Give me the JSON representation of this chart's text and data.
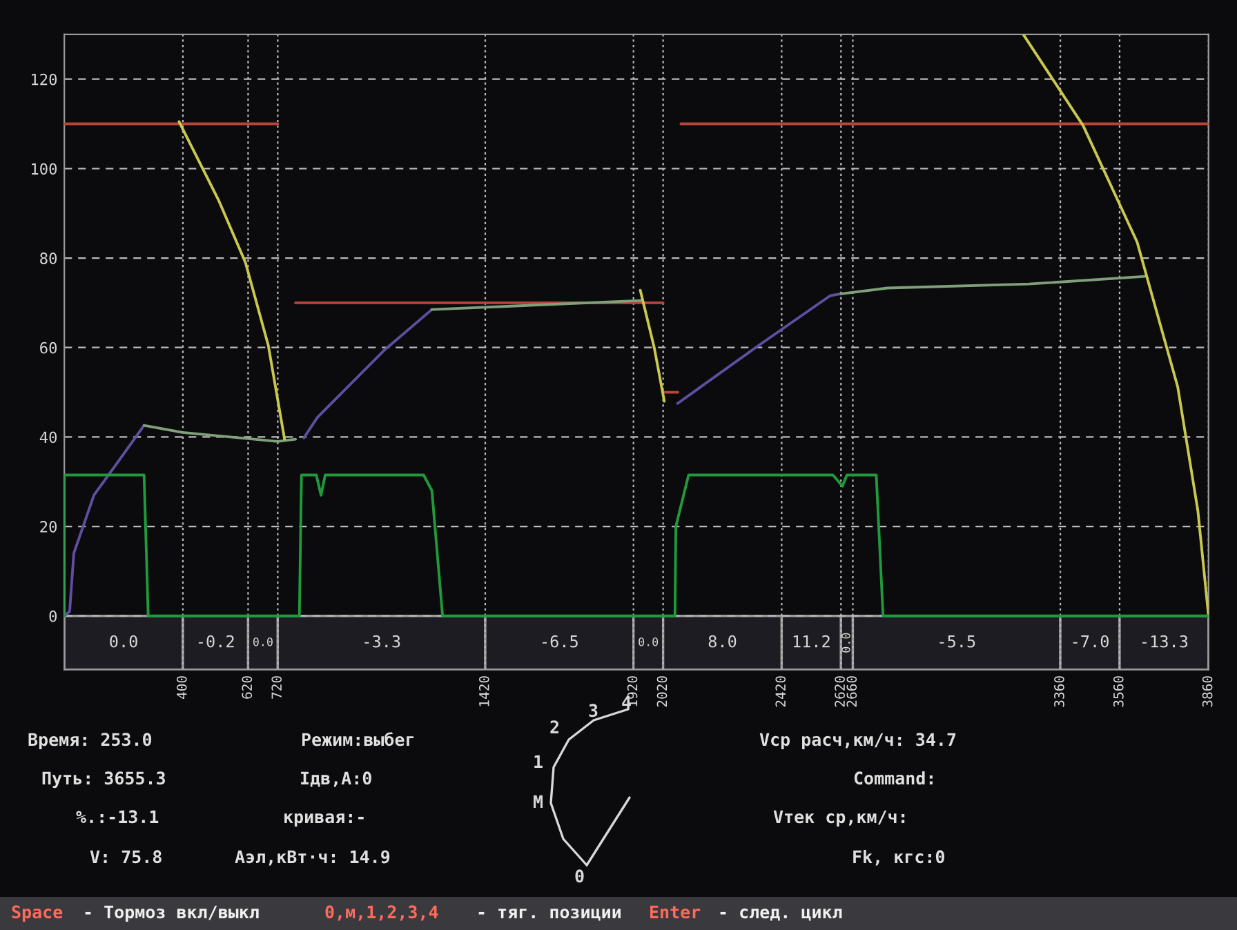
{
  "chart_data": {
    "type": "line",
    "series": [
      {
        "color": "#b8453a",
        "x": [
          0,
          720
        ],
        "values": [
          110,
          110
        ]
      },
      {
        "color": "#b8453a",
        "x": [
          780,
          2020
        ],
        "values": [
          70,
          70
        ]
      },
      {
        "color": "#b8453a",
        "x": [
          2020,
          2070
        ],
        "values": [
          50,
          50
        ]
      },
      {
        "color": "#b8453a",
        "x": [
          2080,
          3860
        ],
        "values": [
          110,
          110
        ]
      },
      {
        "color": "#5e4fa0",
        "x": [
          0,
          18,
          32,
          100,
          187,
          269
        ],
        "values": [
          0,
          1,
          14,
          27,
          35,
          42.6
        ]
      },
      {
        "color": "#5e4fa0",
        "x": [
          808,
          854,
          1081,
          1240
        ],
        "values": [
          39.8,
          44.4,
          59.5,
          68.5
        ]
      },
      {
        "color": "#5e4fa0",
        "x": [
          2069,
          2343,
          2584,
          2620
        ],
        "values": [
          47.5,
          60.5,
          71.6,
          72
        ]
      },
      {
        "color": "#7fa07a",
        "x": [
          269,
          400,
          720,
          780
        ],
        "values": [
          42.6,
          41,
          39,
          39.5
        ]
      },
      {
        "color": "#7fa07a",
        "x": [
          1240,
          1946
        ],
        "values": [
          68.5,
          70.5
        ]
      },
      {
        "color": "#7fa07a",
        "x": [
          2620,
          2776,
          3254,
          3646
        ],
        "values": [
          72,
          73.3,
          74.2,
          75.9
        ]
      },
      {
        "color": "#c9c84e",
        "x": [
          387,
          520,
          611,
          688,
          743
        ],
        "values": [
          110.5,
          93,
          79,
          60.5,
          39.5
        ]
      },
      {
        "color": "#c9c84e",
        "x": [
          1943,
          1990,
          2024
        ],
        "values": [
          72.8,
          60,
          48
        ]
      },
      {
        "color": "#c9c84e",
        "x": [
          3235,
          3437,
          3619,
          3756,
          3824,
          3860
        ],
        "values": [
          130,
          109.6,
          83.6,
          51.2,
          23.5,
          0
        ]
      },
      {
        "color": "#1f9a3c",
        "x": [
          0,
          0,
          269,
          283,
          793,
          800,
          850,
          866,
          880,
          1212,
          1240,
          1276,
          2060,
          2063,
          2106,
          2593,
          2625,
          2640,
          2739,
          2762,
          3860
        ],
        "values": [
          0,
          31.5,
          31.5,
          0,
          0,
          31.5,
          31.5,
          27,
          31.5,
          31.5,
          28,
          0,
          0,
          20,
          31.5,
          31.5,
          29,
          31.5,
          31.5,
          0,
          0
        ]
      }
    ],
    "xlim": [
      0,
      3860
    ],
    "ylim": [
      -12,
      130
    ],
    "xticks": [
      400,
      620,
      720,
      1420,
      1920,
      2020,
      2420,
      2620,
      2660,
      3360,
      3560,
      3860
    ],
    "yticks": [
      0,
      20,
      40,
      60,
      80,
      100,
      120
    ],
    "grid": true,
    "bands": [
      {
        "axis": "x",
        "from": 0,
        "to": 400,
        "label": "0.0"
      },
      {
        "axis": "x",
        "from": 400,
        "to": 620,
        "label": "-0.2"
      },
      {
        "axis": "x",
        "from": 620,
        "to": 720,
        "label": "0.0"
      },
      {
        "axis": "x",
        "from": 720,
        "to": 1420,
        "label": "-3.3"
      },
      {
        "axis": "x",
        "from": 1420,
        "to": 1920,
        "label": "-6.5"
      },
      {
        "axis": "x",
        "from": 1920,
        "to": 2020,
        "label": "0.0"
      },
      {
        "axis": "x",
        "from": 2020,
        "to": 2420,
        "label": "8.0"
      },
      {
        "axis": "x",
        "from": 2420,
        "to": 2620,
        "label": "11.2"
      },
      {
        "axis": "x",
        "from": 2620,
        "to": 2660,
        "label": "0.0"
      },
      {
        "axis": "x",
        "from": 2660,
        "to": 3360,
        "label": "-5.5"
      },
      {
        "axis": "x",
        "from": 3360,
        "to": 3560,
        "label": "-7.0"
      },
      {
        "axis": "x",
        "from": 3560,
        "to": 3860,
        "label": "-13.3"
      }
    ],
    "annotations": [
      "Время: 253.0",
      "Путь: 3655.3",
      "%.:-13.1",
      "V: 75.8",
      "Режим:выбег",
      "Iдв,А:0",
      "кривая:-",
      "Аэл,кВт·ч: 14.9",
      "Vср расч,км/ч: 34.7",
      "Command:",
      "Vтек ср,км/ч:",
      "Fk, кгс:0",
      "0",
      "М",
      "1",
      "2",
      "3",
      "4",
      "Space",
      "- Тормоз вкл/выкл",
      "0,м,1,2,3,4",
      "- тяг. позиции",
      "Enter",
      "- след. цикл"
    ]
  }
}
